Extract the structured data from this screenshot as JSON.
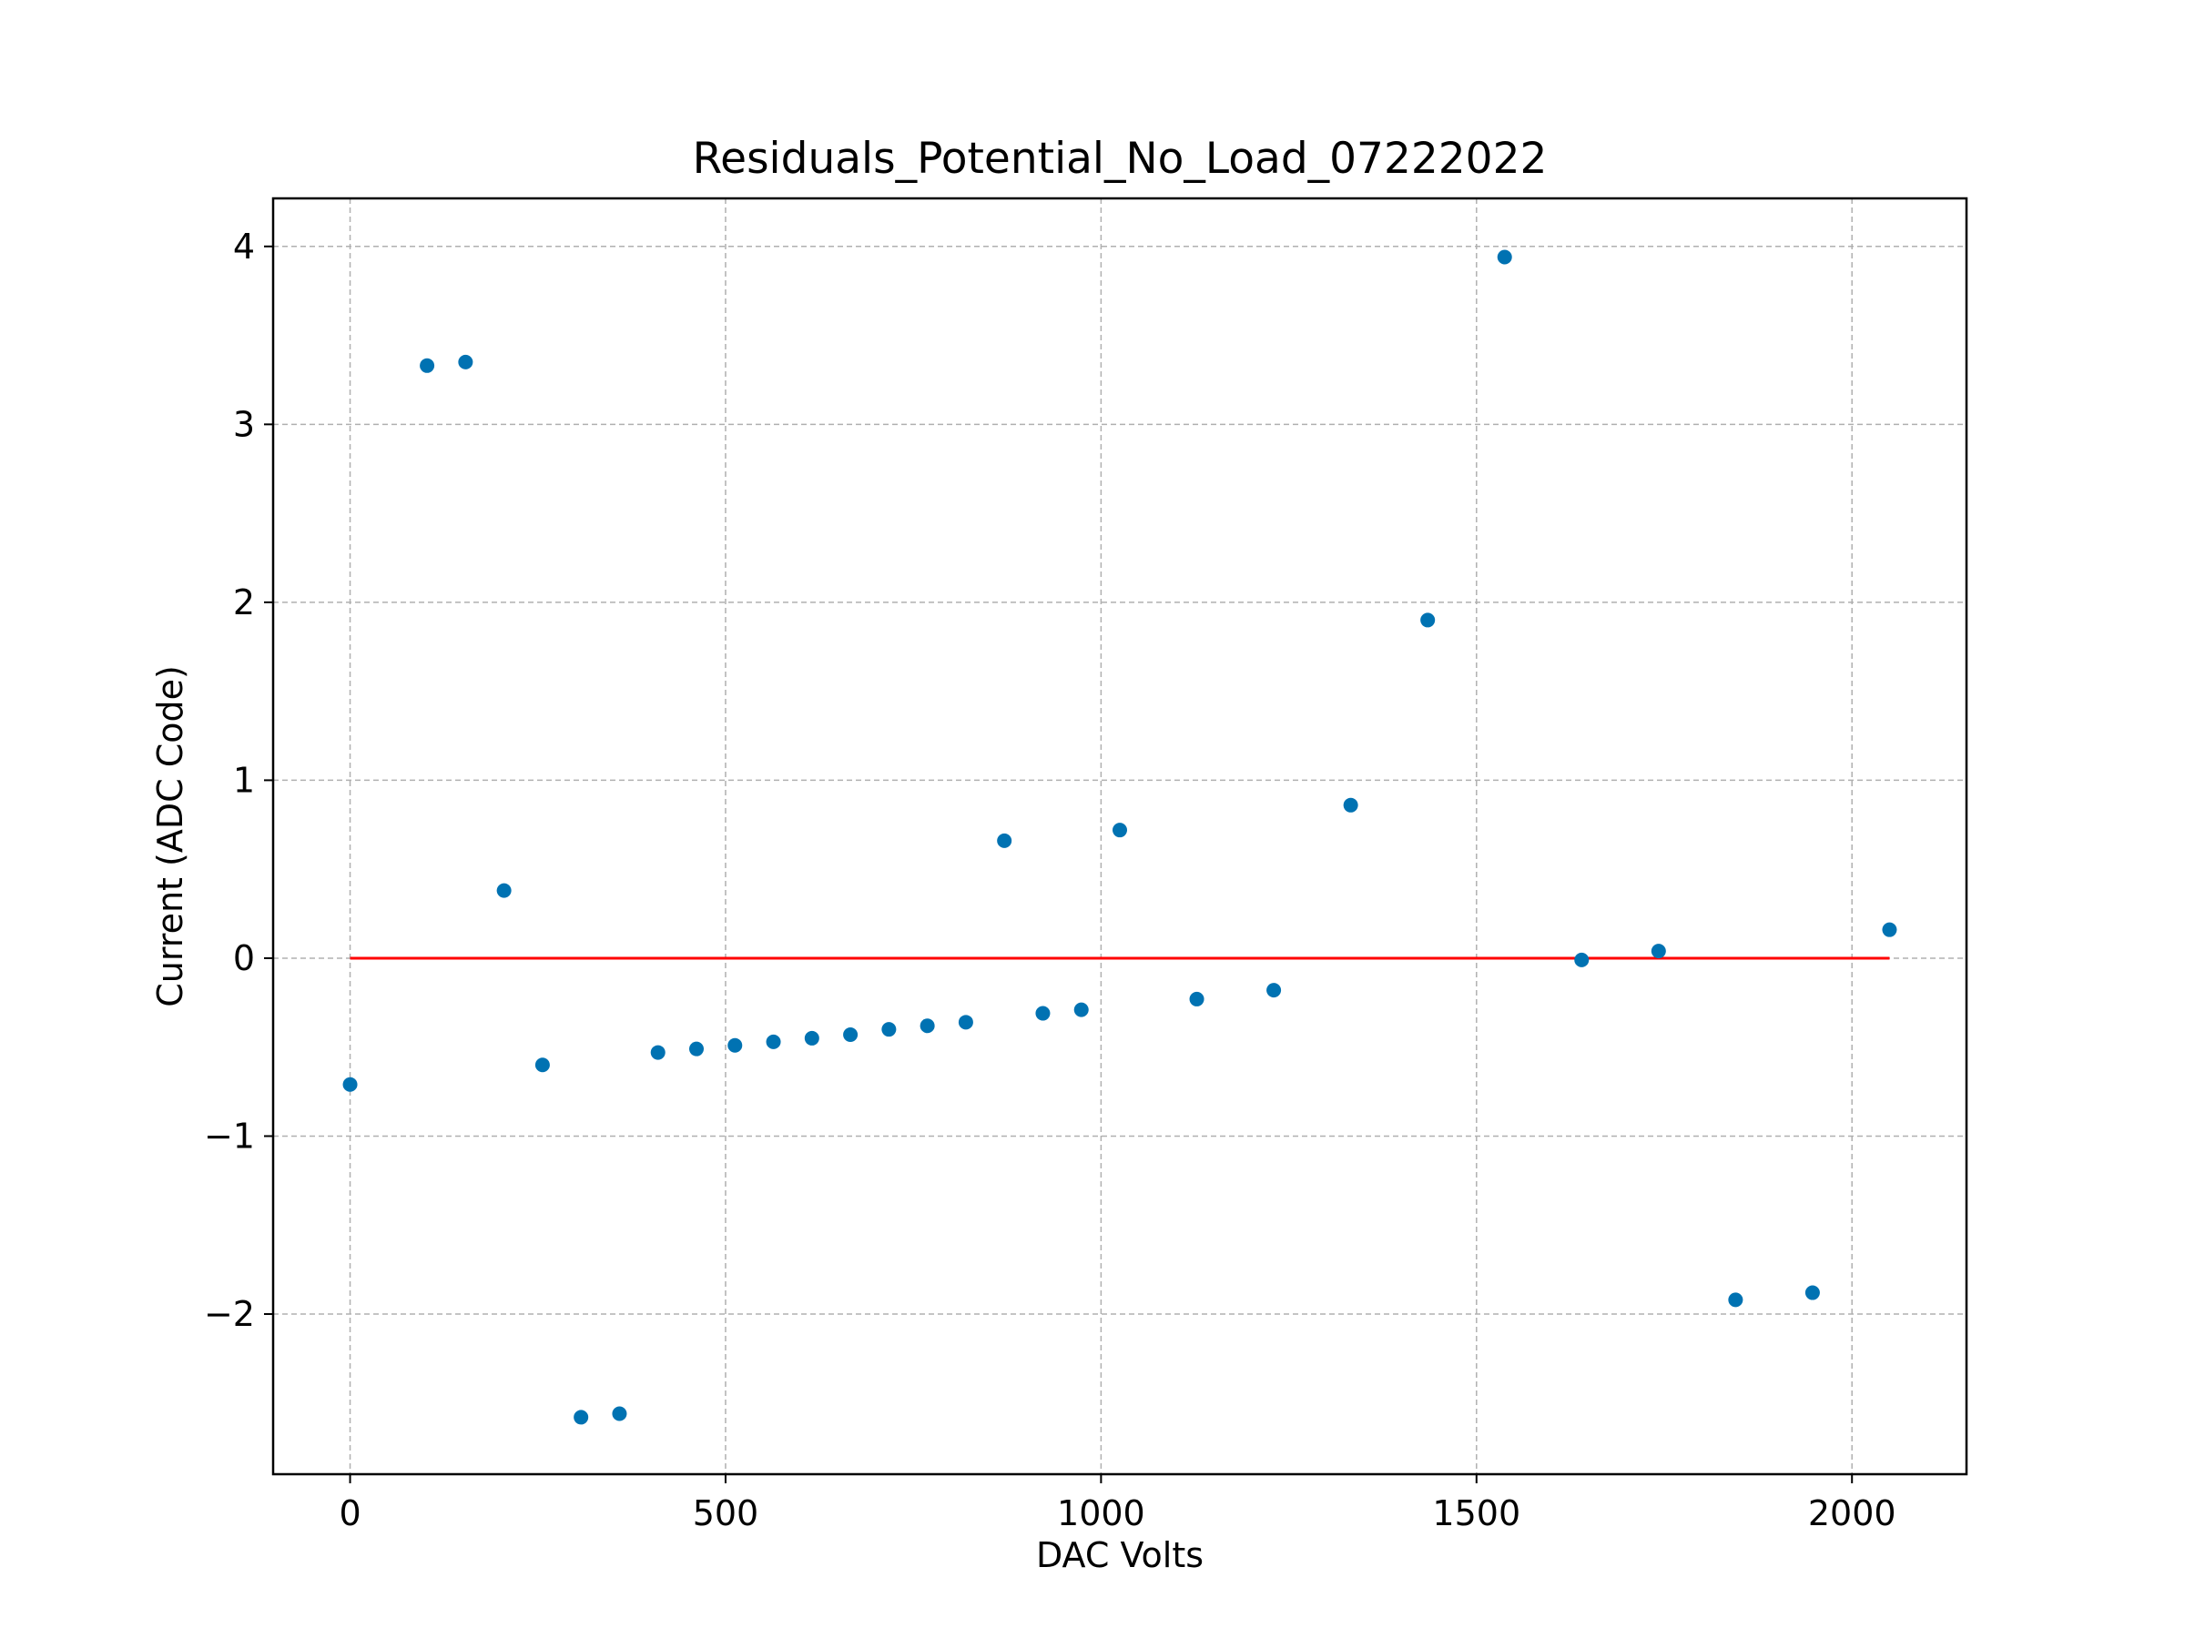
{
  "chart_data": {
    "type": "scatter",
    "title": "Residuals_Potential_No_Load_07222022",
    "xlabel": "DAC Volts",
    "ylabel": "Current (ADC Code)",
    "xlim": [
      -102.5,
      2152.5
    ],
    "ylim": [
      -2.9,
      4.27
    ],
    "xticks": [
      0,
      500,
      1000,
      1500,
      2000
    ],
    "xtick_labels": [
      "0",
      "500",
      "1000",
      "1500",
      "2000"
    ],
    "yticks": [
      -2,
      -1,
      0,
      1,
      2,
      3,
      4
    ],
    "ytick_labels": [
      "−2",
      "−1",
      "0",
      "1",
      "2",
      "3",
      "4"
    ],
    "grid": true,
    "colors": {
      "points": "#0072b2",
      "zero_line": "#ff0000",
      "grid": "#b0b0b0"
    },
    "zero_line": {
      "x": [
        0,
        2050
      ],
      "y": [
        0,
        0
      ]
    },
    "series": [
      {
        "x": [
          0,
          102.5,
          153.75,
          205,
          256.25,
          307.5,
          358.75,
          410,
          461.25,
          512.5,
          563.75,
          615,
          666.25,
          717.5,
          768.75,
          820,
          871.25,
          922.5,
          973.75,
          1025,
          1127.5,
          1230,
          1332.5,
          1435,
          1537.5,
          1640,
          1742.5,
          1845,
          1947.5,
          2050
        ],
        "y": [
          -0.71,
          3.33,
          3.35,
          0.38,
          -0.6,
          -2.58,
          -2.56,
          -0.53,
          -0.51,
          -0.49,
          -0.47,
          -0.45,
          -0.43,
          -0.4,
          -0.38,
          -0.36,
          0.66,
          -0.31,
          -0.29,
          0.72,
          -0.23,
          -0.18,
          0.86,
          1.9,
          3.94,
          -0.01,
          0.04,
          -1.92,
          -1.88,
          0.16
        ]
      }
    ]
  }
}
